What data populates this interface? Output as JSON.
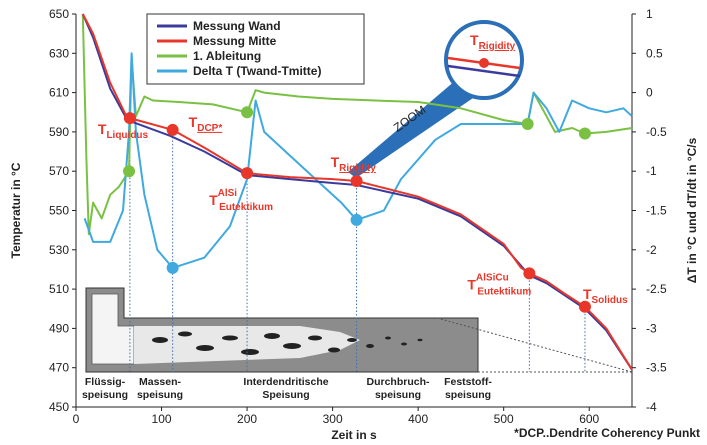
{
  "chart_data": {
    "type": "line",
    "xlabel": "Zeit in s",
    "ylabel": "Temperatur in °C",
    "y2label": "ΔT in °C und dT/dt in °C/s",
    "xlim": [
      0,
      650
    ],
    "xticks": [
      0,
      100,
      200,
      300,
      400,
      500,
      600
    ],
    "ylim": [
      450,
      650
    ],
    "yticks": [
      450,
      470,
      490,
      510,
      530,
      550,
      570,
      590,
      610,
      630,
      650
    ],
    "y2lim": [
      -4,
      1
    ],
    "y2ticks": [
      -4,
      -3.5,
      -3,
      -2.5,
      -2,
      -1.5,
      -1,
      -0.5,
      0,
      0.5,
      1
    ],
    "series": [
      {
        "name": "Messung Wand",
        "color": "#3b3b9e",
        "x": [
          8,
          20,
          40,
          60,
          110,
          150,
          200,
          250,
          300,
          328,
          400,
          450,
          500,
          530,
          550,
          595,
          620,
          650
        ],
        "values": [
          650,
          638,
          612,
          596,
          588,
          580,
          568,
          566,
          564,
          563,
          556,
          547,
          532,
          517,
          513,
          500,
          489,
          469
        ]
      },
      {
        "name": "Messung Mitte",
        "color": "#e8372a",
        "x": [
          8,
          20,
          40,
          60,
          63,
          113,
          150,
          200,
          250,
          300,
          328,
          400,
          450,
          500,
          520,
          530,
          550,
          570,
          595,
          620,
          650
        ],
        "values": [
          650,
          640,
          615,
          597,
          597,
          591,
          582,
          569,
          567,
          566,
          565,
          557,
          548,
          533,
          521,
          518,
          514,
          508,
          501,
          490,
          469
        ]
      },
      {
        "name": "1. Ableitung",
        "color": "#7ac143",
        "axis": "y2",
        "x": [
          8,
          12,
          15,
          20,
          30,
          40,
          50,
          62,
          65,
          70,
          80,
          90,
          120,
          160,
          200,
          210,
          220,
          260,
          300,
          350,
          400,
          450,
          500,
          528,
          535,
          545,
          560,
          580,
          595,
          620,
          650
        ],
        "values": [
          1,
          -0.8,
          -1.8,
          -1.4,
          -1.6,
          -1.3,
          -1.2,
          -1.0,
          0.45,
          -0.3,
          -0.05,
          -0.1,
          -0.12,
          -0.15,
          -0.25,
          0.03,
          0.0,
          -0.05,
          -0.08,
          -0.1,
          -0.12,
          -0.2,
          -0.35,
          -0.4,
          0.0,
          -0.2,
          -0.5,
          -0.45,
          -0.52,
          -0.5,
          -0.45
        ]
      },
      {
        "name": "Delta T (Twand-Tmitte)",
        "color": "#3fa9e0",
        "axis": "y2",
        "x": [
          10,
          20,
          40,
          55,
          62,
          65,
          70,
          80,
          95,
          113,
          150,
          180,
          200,
          210,
          220,
          250,
          280,
          310,
          328,
          360,
          380,
          420,
          450,
          500,
          528,
          535,
          550,
          565,
          580,
          600,
          620,
          640,
          650
        ],
        "values": [
          -1.6,
          -1.9,
          -1.9,
          -1.5,
          -0.5,
          0.5,
          -0.5,
          -1.3,
          -2.0,
          -2.23,
          -2.1,
          -1.7,
          -1.1,
          -0.1,
          -0.5,
          -0.8,
          -1.1,
          -1.4,
          -1.62,
          -1.5,
          -1.1,
          -0.6,
          -0.4,
          -0.4,
          -0.4,
          0.0,
          -0.2,
          -0.5,
          -0.1,
          -0.2,
          -0.25,
          -0.2,
          -0.3
        ]
      }
    ],
    "markers": [
      {
        "x": 63,
        "y": 597,
        "color": "#e8372a",
        "label": "T",
        "sub": "Liquidus"
      },
      {
        "x": 113,
        "y": 591,
        "color": "#e8372a",
        "label": "T",
        "sub": "DCP*",
        "underline": true
      },
      {
        "x": 200,
        "y": 569,
        "color": "#e8372a",
        "label": "T",
        "sup": "AlSi",
        "sub": "Eutektikum"
      },
      {
        "x": 328,
        "y": 565,
        "color": "#e8372a",
        "label": "T",
        "sub": "Rigidity",
        "underline": true
      },
      {
        "x": 530,
        "y": 518,
        "color": "#e8372a",
        "label": "T",
        "sup": "AlSiCu",
        "sub": "Eutektikum"
      },
      {
        "x": 595,
        "y": 501,
        "color": "#e8372a",
        "label": "T",
        "sub": "Solidus"
      },
      {
        "x": 62,
        "y": -1.0,
        "color": "#7ac143",
        "axis": "y2"
      },
      {
        "x": 200,
        "y": -0.25,
        "color": "#7ac143",
        "axis": "y2"
      },
      {
        "x": 528,
        "y": -0.4,
        "color": "#7ac143",
        "axis": "y2"
      },
      {
        "x": 595,
        "y": -0.52,
        "color": "#7ac143",
        "axis": "y2"
      },
      {
        "x": 113,
        "y": -2.23,
        "color": "#3fa9e0",
        "axis": "y2"
      },
      {
        "x": 328,
        "y": -1.62,
        "color": "#3fa9e0",
        "axis": "y2"
      }
    ],
    "zoom": {
      "label": "ZOOM",
      "title": "T",
      "sub": "Rigidity"
    },
    "phases": [
      [
        "Flüssig-",
        "speisung"
      ],
      [
        "Massen-",
        "speisung"
      ],
      [
        "Interdendritische",
        "Speisung"
      ],
      [
        "Durchbruch-",
        "speisung"
      ],
      [
        "Feststoff-",
        "speisung"
      ]
    ],
    "footnote": "*DCP..Dendrite Coherency Punkt"
  }
}
